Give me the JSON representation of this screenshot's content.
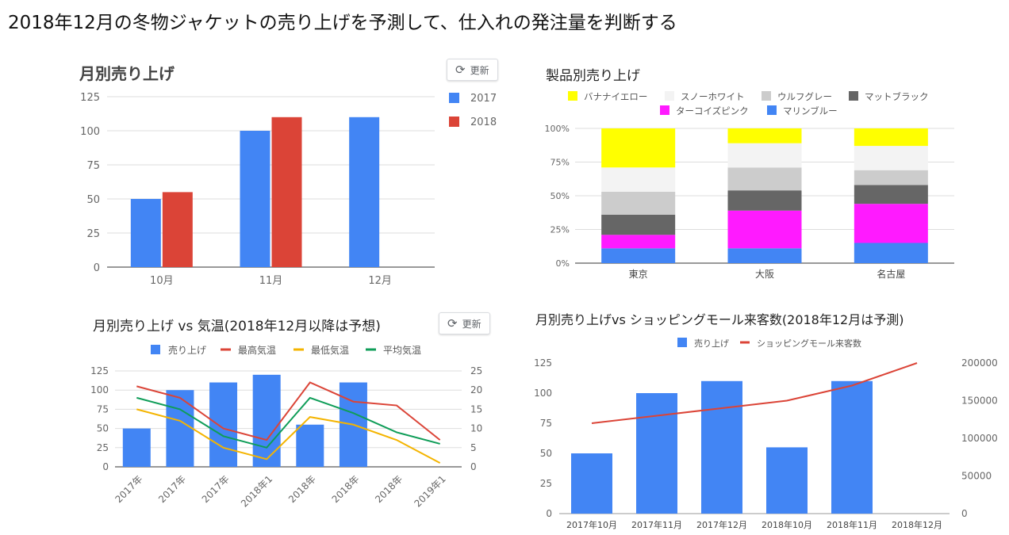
{
  "page_title": "2018年12月の冬物ジャケットの売り上げを予測して、仕入れの発注量を判断する",
  "refresh_label": "更新",
  "colors": {
    "blue": "#4285f4",
    "red": "#db4437",
    "yellow": "#f4b400",
    "green": "#0f9d58",
    "grid": "#dddddd",
    "axis": "#333333",
    "text": "#666666"
  },
  "chart_data": [
    {
      "id": "monthly-sales",
      "type": "bar",
      "title": "月別売り上げ",
      "categories": [
        "10月",
        "11月",
        "12月"
      ],
      "series": [
        {
          "name": "2017",
          "color": "#4285f4",
          "values": [
            50,
            100,
            110
          ]
        },
        {
          "name": "2018",
          "color": "#db4437",
          "values": [
            55,
            110,
            null
          ]
        }
      ],
      "yticks": [
        0,
        25,
        50,
        75,
        100,
        125
      ],
      "ylim": [
        0,
        125
      ],
      "legend": "right",
      "grid": true
    },
    {
      "id": "product-sales",
      "type": "bar",
      "stacked": "percent",
      "title": "製品別売り上げ",
      "categories": [
        "東京",
        "大阪",
        "名古屋"
      ],
      "series": [
        {
          "name": "マリンブルー",
          "color": "#4285f4",
          "values": [
            11,
            11,
            15
          ]
        },
        {
          "name": "ターコイズピンク",
          "color": "#ff1aff",
          "values": [
            10,
            28,
            29
          ]
        },
        {
          "name": "マットブラック",
          "color": "#666666",
          "values": [
            15,
            15,
            14
          ]
        },
        {
          "name": "ウルフグレー",
          "color": "#cccccc",
          "values": [
            17,
            17,
            11
          ]
        },
        {
          "name": "スノーホワイト",
          "color": "#f3f3f3",
          "values": [
            18,
            18,
            18
          ]
        },
        {
          "name": "バナナイエロー",
          "color": "#ffff00",
          "values": [
            29,
            11,
            13
          ]
        }
      ],
      "legend_order": [
        "バナナイエロー",
        "スノーホワイト",
        "ウルフグレー",
        "マットブラック",
        "ターコイズピンク",
        "マリンブルー"
      ],
      "yticks": [
        "0%",
        "25%",
        "50%",
        "75%",
        "100%"
      ],
      "ylim": [
        0,
        100
      ],
      "legend": "top",
      "grid": true
    },
    {
      "id": "sales-vs-temp",
      "type": "bar",
      "combo": "bar+line",
      "title": "月別売り上げ vs 気温(2018年12月以降は予想)",
      "categories": [
        "2017年",
        "2017年",
        "2017年",
        "2018年1",
        "2018年",
        "2018年",
        "2018年",
        "2019年1"
      ],
      "bars": {
        "name": "売り上げ",
        "color": "#4285f4",
        "values": [
          50,
          100,
          110,
          120,
          55,
          110,
          null,
          null
        ]
      },
      "lines": [
        {
          "name": "最高気温",
          "color": "#db4437",
          "values": [
            21,
            18,
            10,
            7,
            22,
            17,
            16,
            7
          ]
        },
        {
          "name": "最低気温",
          "color": "#f4b400",
          "values": [
            15,
            12,
            5,
            2,
            13,
            11,
            7,
            1
          ]
        },
        {
          "name": "平均気温",
          "color": "#0f9d58",
          "values": [
            18,
            15,
            8,
            5,
            18,
            14,
            9,
            6
          ]
        }
      ],
      "yticks_left": [
        0,
        25,
        50,
        75,
        100,
        125
      ],
      "yticks_right": [
        0,
        5,
        10,
        15,
        20,
        25
      ],
      "ylim_left": [
        0,
        125
      ],
      "ylim_right": [
        0,
        25
      ],
      "legend": "top",
      "grid": true
    },
    {
      "id": "sales-vs-visitors",
      "type": "bar",
      "combo": "bar+line",
      "title": "月別売り上げvs ショッピングモール来客数(2018年12月は予測)",
      "categories": [
        "2017年10月",
        "2017年11月",
        "2017年12月",
        "2018年10月",
        "2018年11月",
        "2018年12月"
      ],
      "bars": {
        "name": "売り上げ",
        "color": "#4285f4",
        "values": [
          50,
          100,
          110,
          55,
          110,
          null
        ]
      },
      "lines": [
        {
          "name": "ショッピングモール来客数",
          "color": "#db4437",
          "values": [
            120000,
            130000,
            140000,
            150000,
            170000,
            200000
          ]
        }
      ],
      "yticks_left": [
        0,
        25,
        50,
        75,
        100,
        125
      ],
      "yticks_right": [
        0,
        50000,
        100000,
        150000,
        200000
      ],
      "ylim_left": [
        0,
        125
      ],
      "ylim_right": [
        0,
        200000
      ],
      "legend": "top",
      "grid": false
    }
  ]
}
